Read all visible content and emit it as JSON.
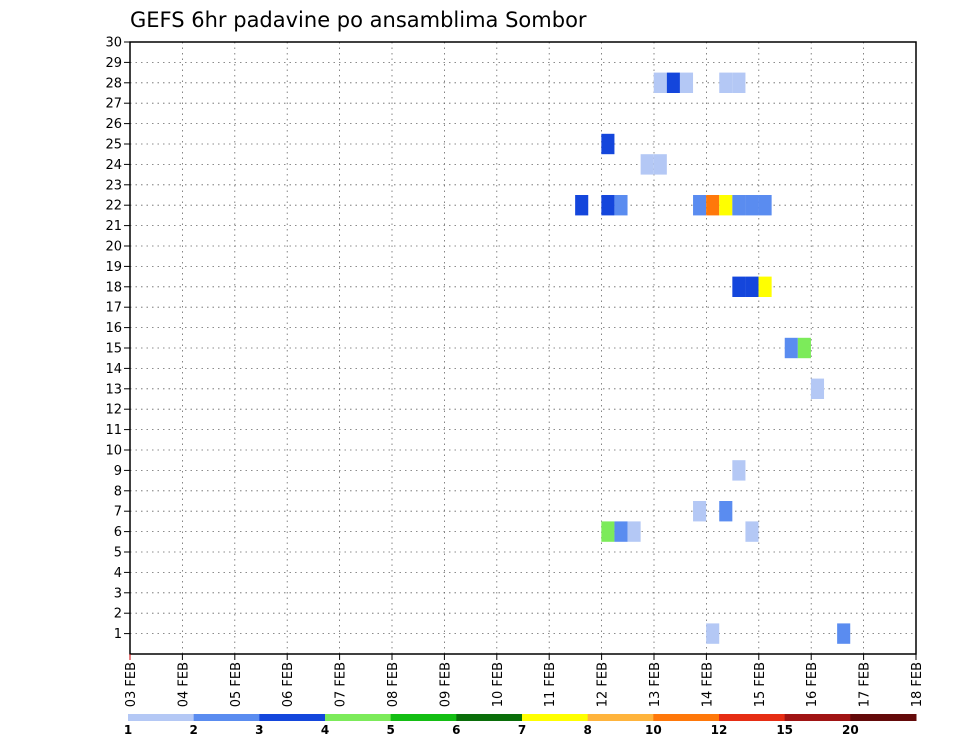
{
  "chart_data": {
    "type": "heatmap",
    "title": "GEFS 6hr padavine po ansamblima Sombor",
    "x_tick_labels": [
      "03 FEB",
      "04 FEB",
      "05 FEB",
      "06 FEB",
      "07 FEB",
      "08 FEB",
      "09 FEB",
      "10 FEB",
      "11 FEB",
      "12 FEB",
      "13 FEB",
      "14 FEB",
      "15 FEB",
      "16 FEB",
      "17 FEB",
      "18 FEB"
    ],
    "x_range_days": [
      3,
      18
    ],
    "ylim": [
      0,
      30
    ],
    "y_ticks": [
      1,
      2,
      3,
      4,
      5,
      6,
      7,
      8,
      9,
      10,
      11,
      12,
      13,
      14,
      15,
      16,
      17,
      18,
      19,
      20,
      21,
      22,
      23,
      24,
      25,
      26,
      27,
      28,
      29,
      30
    ],
    "grid": "dotted",
    "colorbar": {
      "colors": [
        "#b4c8f5",
        "#5a8cf0",
        "#1446dc",
        "#7ceb5a",
        "#14be14",
        "#0a6e0a",
        "#ffff00",
        "#ffb43c",
        "#ff780a",
        "#e62d14",
        "#a01414",
        "#640a0a"
      ],
      "labels": [
        "1",
        "2",
        "3",
        "4",
        "5",
        "6",
        "7",
        "8",
        "10",
        "12",
        "15",
        "20"
      ]
    },
    "cells": [
      {
        "day": 13.12,
        "member": 28,
        "bin": 0
      },
      {
        "day": 13.37,
        "member": 28,
        "bin": 2
      },
      {
        "day": 13.62,
        "member": 28,
        "bin": 0
      },
      {
        "day": 14.37,
        "member": 28,
        "bin": 0
      },
      {
        "day": 14.62,
        "member": 28,
        "bin": 0
      },
      {
        "day": 12.12,
        "member": 25,
        "bin": 2
      },
      {
        "day": 12.87,
        "member": 24,
        "bin": 0
      },
      {
        "day": 13.12,
        "member": 24,
        "bin": 0
      },
      {
        "day": 11.62,
        "member": 22,
        "bin": 2
      },
      {
        "day": 12.12,
        "member": 22,
        "bin": 2
      },
      {
        "day": 12.37,
        "member": 22,
        "bin": 1
      },
      {
        "day": 13.87,
        "member": 22,
        "bin": 1
      },
      {
        "day": 14.12,
        "member": 22,
        "bin": 8
      },
      {
        "day": 14.37,
        "member": 22,
        "bin": 6
      },
      {
        "day": 14.62,
        "member": 22,
        "bin": 1
      },
      {
        "day": 14.87,
        "member": 22,
        "bin": 1
      },
      {
        "day": 15.12,
        "member": 22,
        "bin": 1
      },
      {
        "day": 14.62,
        "member": 18,
        "bin": 2
      },
      {
        "day": 14.87,
        "member": 18,
        "bin": 2
      },
      {
        "day": 15.12,
        "member": 18,
        "bin": 6
      },
      {
        "day": 15.62,
        "member": 15,
        "bin": 1
      },
      {
        "day": 15.87,
        "member": 15,
        "bin": 3
      },
      {
        "day": 16.12,
        "member": 13,
        "bin": 0
      },
      {
        "day": 14.62,
        "member": 9,
        "bin": 0
      },
      {
        "day": 13.87,
        "member": 7,
        "bin": 0
      },
      {
        "day": 14.37,
        "member": 7,
        "bin": 1
      },
      {
        "day": 12.12,
        "member": 6,
        "bin": 3
      },
      {
        "day": 12.37,
        "member": 6,
        "bin": 1
      },
      {
        "day": 12.62,
        "member": 6,
        "bin": 0
      },
      {
        "day": 14.87,
        "member": 6,
        "bin": 0
      },
      {
        "day": 14.12,
        "member": 1,
        "bin": 0
      },
      {
        "day": 16.62,
        "member": 1,
        "bin": 1
      }
    ]
  }
}
